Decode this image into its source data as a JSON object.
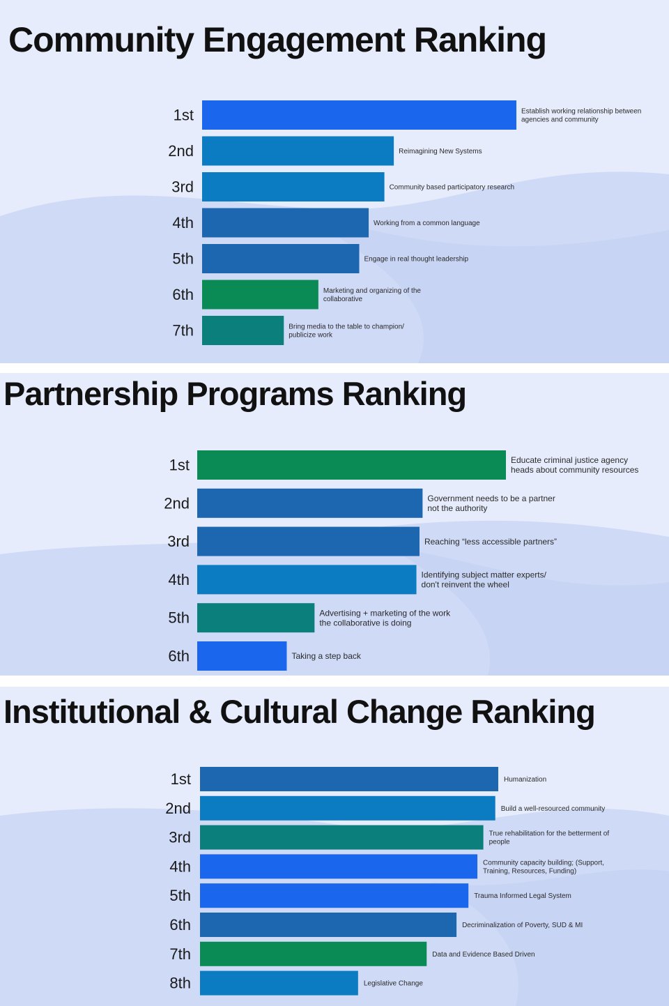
{
  "colors": {
    "background": "#e6ecfb",
    "wave": "#cfdaf6",
    "title_text": "#111111",
    "bright_blue": "#1a66ec",
    "medium_blue": "#0b7bc2",
    "steel_blue": "#1d66b0",
    "green": "#0a8a55",
    "teal": "#0b7f7c"
  },
  "chart_data": [
    {
      "type": "bar",
      "orientation": "horizontal",
      "title": "Community Engagement Ranking",
      "categories": [
        "1st",
        "2nd",
        "3rd",
        "4th",
        "5th",
        "6th",
        "7th"
      ],
      "labels": [
        [
          "Establish working relationship between",
          "agencies and community"
        ],
        [
          "Reimagining New Systems"
        ],
        [
          "Community based participatory research"
        ],
        [
          "Working from a common language"
        ],
        [
          "Engage in real thought leadership"
        ],
        [
          "Marketing and organizing of the",
          "collaborative"
        ],
        [
          "Bring media to the table to champion/",
          "publicize work"
        ]
      ],
      "values": [
        100,
        61,
        58,
        53,
        50,
        37,
        26
      ],
      "bar_colors": [
        "#1a66ec",
        "#0b7bc2",
        "#0b7bc2",
        "#1d66b0",
        "#1d66b0",
        "#0a8a55",
        "#0b7f7c"
      ],
      "xlim": [
        0,
        100
      ],
      "grid": false,
      "legend": "none"
    },
    {
      "type": "bar",
      "orientation": "horizontal",
      "title": "Partnership Programs Ranking",
      "categories": [
        "1st",
        "2nd",
        "3rd",
        "4th",
        "5th",
        "6th"
      ],
      "labels": [
        [
          "Educate criminal justice agency",
          "heads about community resources"
        ],
        [
          "Government needs to be a partner",
          "not the authority"
        ],
        [
          "Reaching “less accessible partners”"
        ],
        [
          "Identifying subject matter experts/",
          "don't reinvent the wheel"
        ],
        [
          "Advertising + marketing of the work",
          "the collaborative is doing"
        ],
        [
          "Taking a step back"
        ]
      ],
      "values": [
        100,
        73,
        72,
        71,
        38,
        29
      ],
      "bar_colors": [
        "#0a8a55",
        "#1d66b0",
        "#1d66b0",
        "#0b7bc2",
        "#0b7f7c",
        "#1a66ec"
      ],
      "xlim": [
        0,
        100
      ],
      "grid": false,
      "legend": "none"
    },
    {
      "type": "bar",
      "orientation": "horizontal",
      "title": "Institutional & Cultural Change Ranking",
      "categories": [
        "1st",
        "2nd",
        "3rd",
        "4th",
        "5th",
        "6th",
        "7th",
        "8th"
      ],
      "labels": [
        [
          "Humanization"
        ],
        [
          "Build a well-resourced community"
        ],
        [
          "True rehabilitation for the betterment of",
          "people"
        ],
        [
          "Community capacity building; (Support,",
          "Training, Resources, Funding)"
        ],
        [
          "Trauma Informed Legal System"
        ],
        [
          "Decriminalization of Poverty, SUD & MI"
        ],
        [
          "Data and Evidence Based Driven"
        ],
        [
          "Legislative Change"
        ]
      ],
      "values": [
        100,
        99,
        95,
        93,
        90,
        86,
        76,
        53
      ],
      "bar_colors": [
        "#1d66b0",
        "#0b7bc2",
        "#0b7f7c",
        "#1a66ec",
        "#1a66ec",
        "#1d66b0",
        "#0a8a55",
        "#0b7bc2"
      ],
      "xlim": [
        0,
        100
      ],
      "grid": false,
      "legend": "none"
    }
  ]
}
